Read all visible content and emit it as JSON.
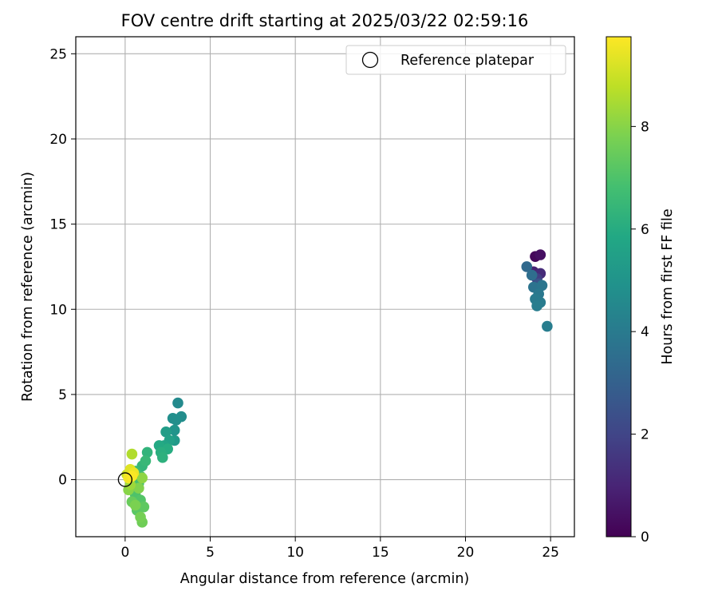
{
  "chart_data": {
    "type": "scatter",
    "title": "FOV centre drift starting at 2025/03/22 02:59:16",
    "xlabel": "Angular distance from reference (arcmin)",
    "ylabel": "Rotation from reference (arcmin)",
    "xlim": [
      -2.9,
      26.4
    ],
    "ylim": [
      -3.35,
      26.0
    ],
    "xticks": [
      0,
      5,
      10,
      15,
      20,
      25
    ],
    "yticks": [
      0,
      5,
      10,
      15,
      20,
      25
    ],
    "grid": true,
    "legend": {
      "placement": "top-right",
      "entries": [
        "Reference platepar"
      ]
    },
    "reference_point": {
      "x": 0,
      "y": 0,
      "label": "Reference platepar"
    },
    "colorbar": {
      "label": "Hours from first FF file",
      "range": [
        0,
        9.75
      ],
      "ticks": [
        0,
        2,
        4,
        6,
        8
      ],
      "colormap": "viridis"
    },
    "series": [
      {
        "points": [
          {
            "x": 24.1,
            "y": 13.1,
            "h": 0.2
          },
          {
            "x": 24.4,
            "y": 13.2,
            "h": 0.4
          },
          {
            "x": 24.0,
            "y": 12.2,
            "h": 0.9
          },
          {
            "x": 24.4,
            "y": 12.1,
            "h": 1.2
          },
          {
            "x": 24.2,
            "y": 11.8,
            "h": 1.8
          },
          {
            "x": 24.3,
            "y": 11.5,
            "h": 2.5
          },
          {
            "x": 23.6,
            "y": 12.5,
            "h": 3.3
          },
          {
            "x": 23.9,
            "y": 12.0,
            "h": 3.5
          },
          {
            "x": 24.0,
            "y": 11.3,
            "h": 3.7
          },
          {
            "x": 24.5,
            "y": 11.4,
            "h": 3.8
          },
          {
            "x": 24.3,
            "y": 10.9,
            "h": 3.9
          },
          {
            "x": 24.1,
            "y": 10.6,
            "h": 4.0
          },
          {
            "x": 24.4,
            "y": 10.4,
            "h": 4.0
          },
          {
            "x": 24.2,
            "y": 10.2,
            "h": 4.1
          },
          {
            "x": 24.8,
            "y": 9.0,
            "h": 4.1
          },
          {
            "x": 3.1,
            "y": 4.5,
            "h": 4.6
          },
          {
            "x": 3.3,
            "y": 3.7,
            "h": 4.7
          },
          {
            "x": 2.8,
            "y": 3.6,
            "h": 4.8
          },
          {
            "x": 3.0,
            "y": 3.5,
            "h": 4.8
          },
          {
            "x": 2.9,
            "y": 2.9,
            "h": 5.0
          },
          {
            "x": 2.9,
            "y": 2.3,
            "h": 5.2
          },
          {
            "x": 2.4,
            "y": 2.8,
            "h": 5.4
          },
          {
            "x": 2.6,
            "y": 2.3,
            "h": 5.5
          },
          {
            "x": 2.3,
            "y": 2.0,
            "h": 5.7
          },
          {
            "x": 2.0,
            "y": 2.0,
            "h": 5.9
          },
          {
            "x": 2.5,
            "y": 1.8,
            "h": 6.0
          },
          {
            "x": 2.1,
            "y": 1.6,
            "h": 6.1
          },
          {
            "x": 2.2,
            "y": 1.3,
            "h": 6.2
          },
          {
            "x": 1.3,
            "y": 1.6,
            "h": 6.3
          },
          {
            "x": 1.0,
            "y": 0.8,
            "h": 6.4
          },
          {
            "x": 1.2,
            "y": 1.1,
            "h": 6.5
          },
          {
            "x": 0.6,
            "y": 0.5,
            "h": 6.6
          },
          {
            "x": 0.9,
            "y": 0.2,
            "h": 6.7
          },
          {
            "x": 0.8,
            "y": -0.2,
            "h": 6.9
          },
          {
            "x": 0.6,
            "y": -0.9,
            "h": 7.0
          },
          {
            "x": 0.9,
            "y": -1.2,
            "h": 7.1
          },
          {
            "x": 0.7,
            "y": -1.8,
            "h": 7.2
          },
          {
            "x": 1.1,
            "y": -1.6,
            "h": 7.3
          },
          {
            "x": 0.4,
            "y": -1.3,
            "h": 7.5
          },
          {
            "x": 1.0,
            "y": -2.5,
            "h": 7.6
          },
          {
            "x": 0.9,
            "y": -2.2,
            "h": 7.7
          },
          {
            "x": 0.6,
            "y": -1.5,
            "h": 7.8
          },
          {
            "x": 0.8,
            "y": -0.5,
            "h": 7.9
          },
          {
            "x": 0.2,
            "y": -0.6,
            "h": 8.0
          },
          {
            "x": 1.0,
            "y": 0.1,
            "h": 8.1
          },
          {
            "x": 0.3,
            "y": -0.3,
            "h": 8.3
          },
          {
            "x": 0.4,
            "y": 1.5,
            "h": 8.6
          },
          {
            "x": 0.1,
            "y": 0.3,
            "h": 9.0
          },
          {
            "x": 0.3,
            "y": 0.6,
            "h": 9.3
          },
          {
            "x": 0.5,
            "y": 0.4,
            "h": 9.5
          },
          {
            "x": 0.2,
            "y": 0.1,
            "h": 9.6
          },
          {
            "x": 0.4,
            "y": 0.2,
            "h": 9.7
          }
        ]
      }
    ]
  }
}
